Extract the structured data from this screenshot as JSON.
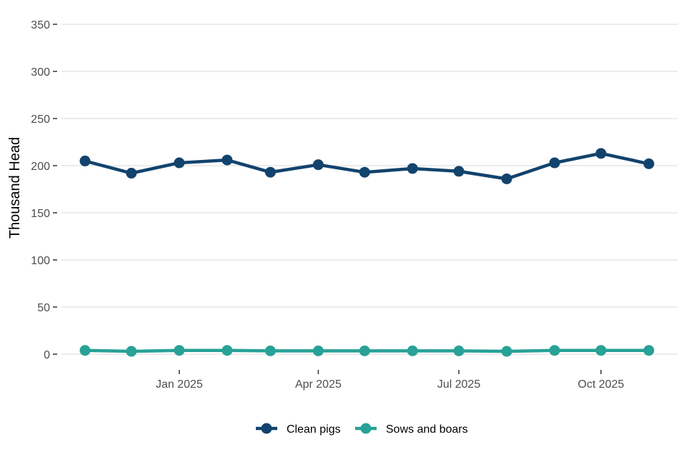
{
  "chart_data": {
    "type": "line",
    "title": "",
    "xlabel": "",
    "ylabel": "Thousand Head",
    "ylim": [
      0,
      350
    ],
    "yticks": [
      0,
      50,
      100,
      150,
      200,
      250,
      300,
      350
    ],
    "xlim": [
      "2024-11-01",
      "2025-11-01"
    ],
    "xticks": [
      {
        "date": "2025-01-01",
        "label": "Jan 2025"
      },
      {
        "date": "2025-04-01",
        "label": "Apr 2025"
      },
      {
        "date": "2025-07-01",
        "label": "Jul 2025"
      },
      {
        "date": "2025-10-01",
        "label": "Oct 2025"
      }
    ],
    "x": [
      "2024-11-01",
      "2024-12-01",
      "2025-01-01",
      "2025-02-01",
      "2025-03-01",
      "2025-04-01",
      "2025-05-01",
      "2025-06-01",
      "2025-07-01",
      "2025-08-01",
      "2025-09-01",
      "2025-10-01",
      "2025-11-01"
    ],
    "grid": "horizontal",
    "legend_position": "bottom",
    "series": [
      {
        "name": "Clean pigs",
        "color": "#12436d",
        "values": [
          205,
          192,
          203,
          206,
          193,
          201,
          193,
          197,
          194,
          186,
          203,
          213,
          202
        ]
      },
      {
        "name": "Sows and boars",
        "color": "#28a197",
        "values": [
          4,
          3,
          4,
          4,
          3.5,
          3.5,
          3.5,
          3.5,
          3.5,
          3,
          4,
          4,
          4
        ]
      }
    ]
  }
}
